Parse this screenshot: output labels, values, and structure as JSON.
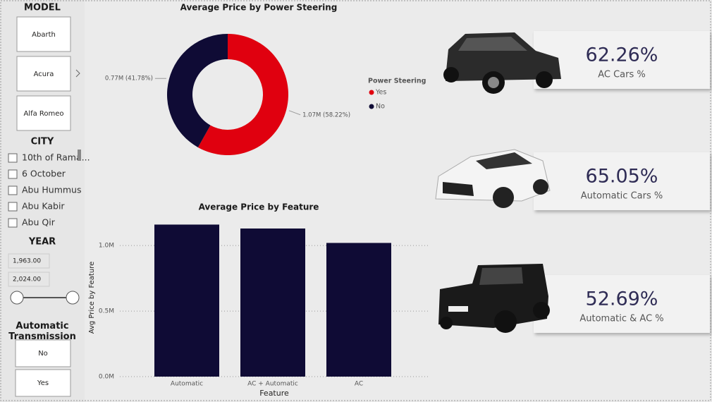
{
  "slicers": {
    "model": {
      "title": "MODEL",
      "items": [
        "Abarth",
        "Acura",
        "Alfa Romeo"
      ]
    },
    "city": {
      "title": "CITY",
      "items": [
        "10th of Rama...",
        "6 October",
        "Abu Hummus",
        "Abu Kabir",
        "Abu Qir"
      ]
    },
    "year": {
      "title": "YEAR",
      "from": "1,963.00",
      "to": "2,024.00"
    },
    "transmission": {
      "title": "Automatic Transmission",
      "items": [
        "No",
        "Yes"
      ]
    }
  },
  "chart_data": [
    {
      "type": "donut",
      "title": "Average Price by Power Steering",
      "legend_title": "Power Steering",
      "categories": [
        "Yes",
        "No"
      ],
      "values": [
        1070000,
        770000
      ],
      "value_labels": [
        "1.07M (58.22%)",
        "0.77M (41.78%)"
      ],
      "colors": [
        "#e0000f",
        "#0f0b35"
      ]
    },
    {
      "type": "bar",
      "title": "Average Price by Feature",
      "x_label": "Feature",
      "y_label": "Avg Price by Feature",
      "categories": [
        "Automatic",
        "AC + Automatic",
        "AC"
      ],
      "values": [
        1160000,
        1130000,
        1020000
      ],
      "color": "#0f0b35",
      "ylim": [
        0,
        1200000
      ],
      "yticks": [
        {
          "value": 0,
          "label": "0.0M"
        },
        {
          "value": 500000,
          "label": "0.5M"
        },
        {
          "value": 1000000,
          "label": "1.0M"
        }
      ],
      "grid": true
    }
  ],
  "cards": [
    {
      "value": "62.26%",
      "label": "AC Cars %"
    },
    {
      "value": "65.05%",
      "label": "Automatic Cars %"
    },
    {
      "value": "52.69%",
      "label": "Automatic & AC %"
    }
  ]
}
